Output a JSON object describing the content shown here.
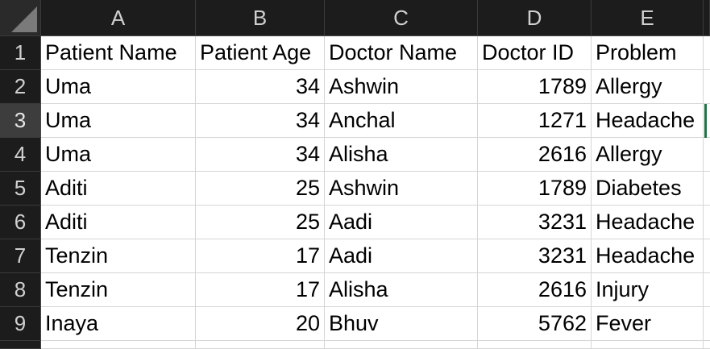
{
  "columns": [
    "A",
    "B",
    "C",
    "D",
    "E"
  ],
  "rows": [
    {
      "num": "1",
      "cells": [
        "Patient Name",
        "Patient Age",
        "Doctor Name",
        "Doctor ID",
        "Problem"
      ]
    },
    {
      "num": "2",
      "cells": [
        "Uma",
        "34",
        "Ashwin",
        "1789",
        "Allergy"
      ]
    },
    {
      "num": "3",
      "cells": [
        "Uma",
        "34",
        "Anchal",
        "1271",
        "Headache"
      ]
    },
    {
      "num": "4",
      "cells": [
        "Uma",
        "34",
        "Alisha",
        "2616",
        "Allergy"
      ]
    },
    {
      "num": "5",
      "cells": [
        "Aditi",
        "25",
        "Ashwin",
        "1789",
        "Diabetes"
      ]
    },
    {
      "num": "6",
      "cells": [
        "Aditi",
        "25",
        "Aadi",
        "3231",
        "Headache"
      ]
    },
    {
      "num": "7",
      "cells": [
        "Tenzin",
        "17",
        "Aadi",
        "3231",
        "Headache"
      ]
    },
    {
      "num": "8",
      "cells": [
        "Tenzin",
        "17",
        "Alisha",
        "2616",
        "Injury"
      ]
    },
    {
      "num": "9",
      "cells": [
        "Inaya",
        "20",
        "Bhuv",
        "5762",
        "Fever"
      ]
    }
  ],
  "active_row": "3",
  "colors": {
    "selection": "#217346",
    "header_bg": "#1c1c1c",
    "grid_line": "#d6d6d6"
  }
}
